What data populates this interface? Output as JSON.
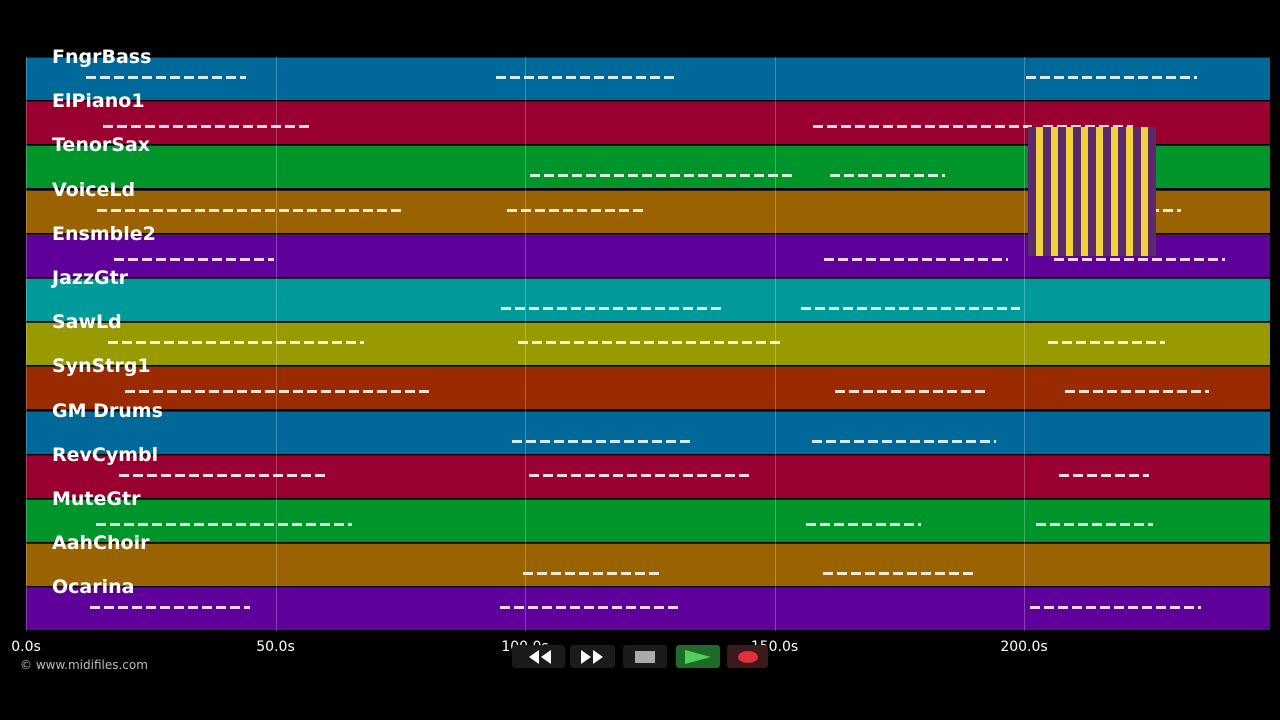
{
  "tracks": [
    {
      "name": "FngrBass",
      "color": "#00699a"
    },
    {
      "name": "ElPiano1",
      "color": "#99002f"
    },
    {
      "name": "TenorSax",
      "color": "#00952a"
    },
    {
      "name": "VoiceLd",
      "color": "#9a6200"
    },
    {
      "name": "Ensmble2",
      "color": "#5f009a"
    },
    {
      "name": "JazzGtr",
      "color": "#009a9a"
    },
    {
      "name": "SawLd",
      "color": "#999a00"
    },
    {
      "name": "SynStrg1",
      "color": "#9a2a00"
    },
    {
      "name": "GM Drums",
      "color": "#00699a"
    },
    {
      "name": "RevCymbl",
      "color": "#99002f"
    },
    {
      "name": "MuteGtr",
      "color": "#00952a"
    },
    {
      "name": "AahChoir",
      "color": "#9a6200"
    },
    {
      "name": "Ocarina",
      "color": "#5f009a"
    }
  ],
  "time_axis": {
    "ticks": [
      "0.0s",
      "50.0s",
      "100.0s",
      "150.0s",
      "200.0s"
    ]
  },
  "footer": {
    "copyright": "© www.midifiles.com"
  }
}
